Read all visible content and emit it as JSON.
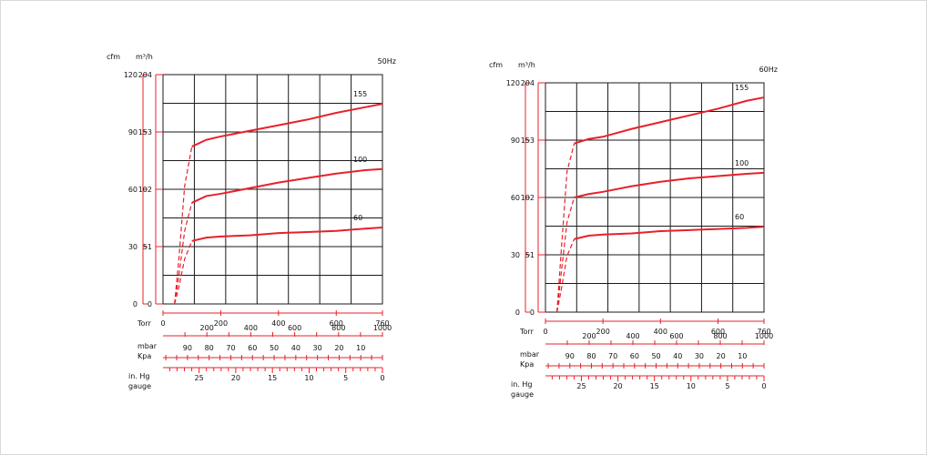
{
  "chart_data": [
    {
      "type": "line",
      "frequency_label": "50Hz",
      "y_axes": {
        "cfm": {
          "label": "cfm",
          "ticks": [
            "120",
            "90",
            "60",
            "30",
            "0"
          ],
          "values": [
            120,
            90,
            60,
            30,
            0
          ]
        },
        "m3h": {
          "label": "m³/h",
          "ticks": [
            "204",
            "153",
            "102",
            "51",
            "0"
          ],
          "values": [
            204,
            153,
            102,
            51,
            0
          ]
        }
      },
      "ylim": [
        0,
        204
      ],
      "x_axes": {
        "torr": {
          "label": "Torr",
          "ticks": [
            "0",
            "200",
            "400",
            "600",
            "760"
          ],
          "values": [
            0,
            200,
            400,
            600,
            760
          ]
        },
        "mbar": {
          "label": "mbar",
          "ticks": [
            "200",
            "400",
            "600",
            "800",
            "1000"
          ],
          "values": [
            200,
            400,
            600,
            800,
            1000
          ]
        },
        "kpa": {
          "label": "Kpa",
          "ticks": [
            "90",
            "80",
            "70",
            "60",
            "50",
            "40",
            "30",
            "20",
            "10"
          ],
          "values": [
            90,
            80,
            70,
            60,
            50,
            40,
            30,
            20,
            10
          ]
        },
        "inhg": {
          "label": "in. Hg",
          "label2": "gauge",
          "ticks": [
            "25",
            "20",
            "15",
            "10",
            "5",
            "0"
          ],
          "values": [
            25,
            20,
            15,
            10,
            5,
            0
          ]
        }
      },
      "xlim": [
        0,
        760
      ],
      "grid": true,
      "series": [
        {
          "name": "155",
          "x": [
            40,
            55,
            75,
            100,
            150,
            200,
            300,
            400,
            500,
            600,
            700,
            760
          ],
          "y": [
            0,
            40,
            105,
            140,
            146,
            149,
            154,
            159,
            164,
            170,
            175,
            178
          ]
        },
        {
          "name": "100",
          "x": [
            40,
            55,
            75,
            100,
            150,
            200,
            300,
            400,
            500,
            600,
            700,
            760
          ],
          "y": [
            0,
            25,
            65,
            90,
            96,
            98,
            103,
            108,
            112,
            116,
            119,
            120
          ]
        },
        {
          "name": "60",
          "x": [
            40,
            55,
            75,
            100,
            150,
            200,
            300,
            400,
            500,
            600,
            700,
            760
          ],
          "y": [
            0,
            15,
            40,
            56,
            59,
            60,
            61,
            63,
            64,
            65,
            67,
            68
          ]
        }
      ]
    },
    {
      "type": "line",
      "frequency_label": "60Hz",
      "y_axes": {
        "cfm": {
          "label": "cfm",
          "ticks": [
            "120",
            "90",
            "60",
            "30",
            "0"
          ],
          "values": [
            120,
            90,
            60,
            30,
            0
          ]
        },
        "m3h": {
          "label": "m³/h",
          "ticks": [
            "204",
            "153",
            "102",
            "51",
            "0"
          ],
          "values": [
            204,
            153,
            102,
            51,
            0
          ]
        }
      },
      "ylim": [
        0,
        204
      ],
      "x_axes": {
        "torr": {
          "label": "Torr",
          "ticks": [
            "0",
            "200",
            "400",
            "600",
            "760"
          ],
          "values": [
            0,
            200,
            400,
            600,
            760
          ]
        },
        "mbar": {
          "label": "mbar",
          "ticks": [
            "200",
            "400",
            "600",
            "800",
            "1000"
          ],
          "values": [
            200,
            400,
            600,
            800,
            1000
          ]
        },
        "kpa": {
          "label": "Kpa",
          "ticks": [
            "90",
            "80",
            "70",
            "60",
            "50",
            "40",
            "30",
            "20",
            "10"
          ],
          "values": [
            90,
            80,
            70,
            60,
            50,
            40,
            30,
            20,
            10
          ]
        },
        "inhg": {
          "label": "in. Hg",
          "label2": "gauge",
          "ticks": [
            "25",
            "20",
            "15",
            "10",
            "5",
            "0"
          ],
          "values": [
            25,
            20,
            15,
            10,
            5,
            0
          ]
        }
      },
      "xlim": [
        0,
        760
      ],
      "grid": true,
      "series": [
        {
          "name": "155",
          "x": [
            40,
            55,
            75,
            100,
            150,
            200,
            300,
            400,
            500,
            600,
            700,
            760
          ],
          "y": [
            0,
            55,
            125,
            150,
            154,
            156,
            163,
            169,
            175,
            181,
            188,
            191
          ]
        },
        {
          "name": "100",
          "x": [
            40,
            55,
            75,
            100,
            150,
            200,
            300,
            400,
            500,
            600,
            700,
            760
          ],
          "y": [
            0,
            35,
            80,
            102,
            105,
            107,
            112,
            116,
            119,
            121,
            123,
            124
          ]
        },
        {
          "name": "60",
          "x": [
            40,
            55,
            75,
            100,
            150,
            200,
            300,
            400,
            500,
            600,
            700,
            760
          ],
          "y": [
            0,
            20,
            50,
            65,
            68,
            69,
            70,
            72,
            73,
            74,
            75,
            76
          ]
        }
      ]
    }
  ],
  "colors": {
    "curve": "#e8202a",
    "grid": "#1a1a1a",
    "text": "#111111"
  }
}
